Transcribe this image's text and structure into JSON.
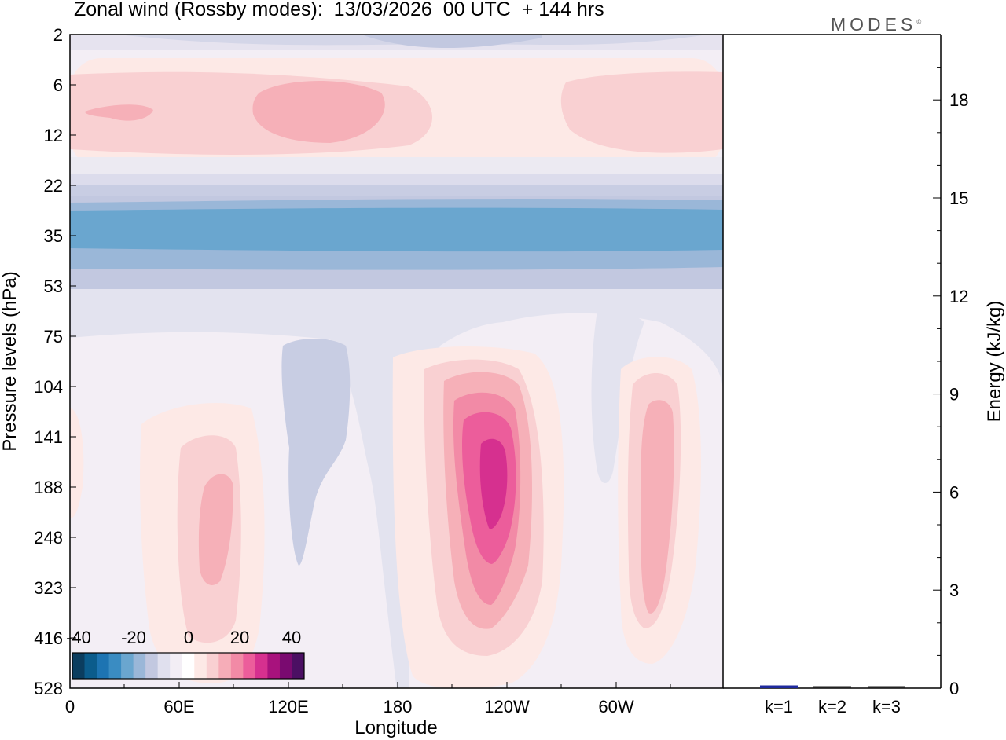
{
  "title": "Zonal wind (Rossby modes):  13/03/2026  00 UTC  + 144 hrs",
  "logo": "MODES",
  "logo_mark": "©",
  "chart_data": [
    {
      "type": "heatmap",
      "title": "Zonal wind (Rossby modes):  13/03/2026  00 UTC  + 144 hrs",
      "xlabel": "Longitude",
      "ylabel": "Pressure levels (hPa)",
      "x_ticks": [
        "0",
        "60E",
        "120E",
        "180",
        "120W",
        "60W"
      ],
      "y_ticks": [
        "2",
        "6",
        "12",
        "22",
        "35",
        "53",
        "75",
        "104",
        "141",
        "188",
        "248",
        "323",
        "416",
        "528"
      ],
      "colorbar": {
        "tick_labels": [
          "-40",
          "-20",
          "0",
          "20",
          "40"
        ],
        "range": [
          -45,
          45
        ],
        "step": 5,
        "colors": [
          "#0b3d5f",
          "#0b5c8c",
          "#1d74b2",
          "#3a8cc2",
          "#6aa6cf",
          "#9ab7d8",
          "#c2c8e0",
          "#e0e0ee",
          "#f3eef5",
          "#ffffff",
          "#fde9e6",
          "#f9d0d2",
          "#f6adb8",
          "#f28aa6",
          "#ec5d9b",
          "#d6308f",
          "#a8127d",
          "#7a0a70",
          "#4b0f63"
        ]
      },
      "features": [
        {
          "name": "upper-easterly-band",
          "level_hPa": [
            22,
            53
          ],
          "value": -25
        },
        {
          "name": "upper-westerly-band",
          "level_hPa": [
            6,
            12
          ],
          "value": 10
        },
        {
          "name": "jet-core-120W",
          "lon": "120W",
          "level_hPa": [
            104,
            416
          ],
          "max_value": 40
        },
        {
          "name": "jet-60E",
          "lon": "60E",
          "level_hPa": [
            141,
            416
          ],
          "max_value": 20
        },
        {
          "name": "jet-60W",
          "lon": "60W",
          "level_hPa": [
            104,
            416
          ],
          "max_value": 20
        }
      ]
    },
    {
      "type": "bar",
      "ylabel": "Energy (kJ/kg)",
      "categories": [
        "k=1",
        "k=2",
        "k=3"
      ],
      "values": [
        0.06,
        0.03,
        0.01
      ],
      "ylim": [
        0,
        20
      ],
      "y_ticks": [
        "0",
        "3",
        "6",
        "9",
        "12",
        "15",
        "18"
      ],
      "bar_colors": [
        "#1f2a9e",
        "#222222",
        "#222222"
      ]
    }
  ]
}
